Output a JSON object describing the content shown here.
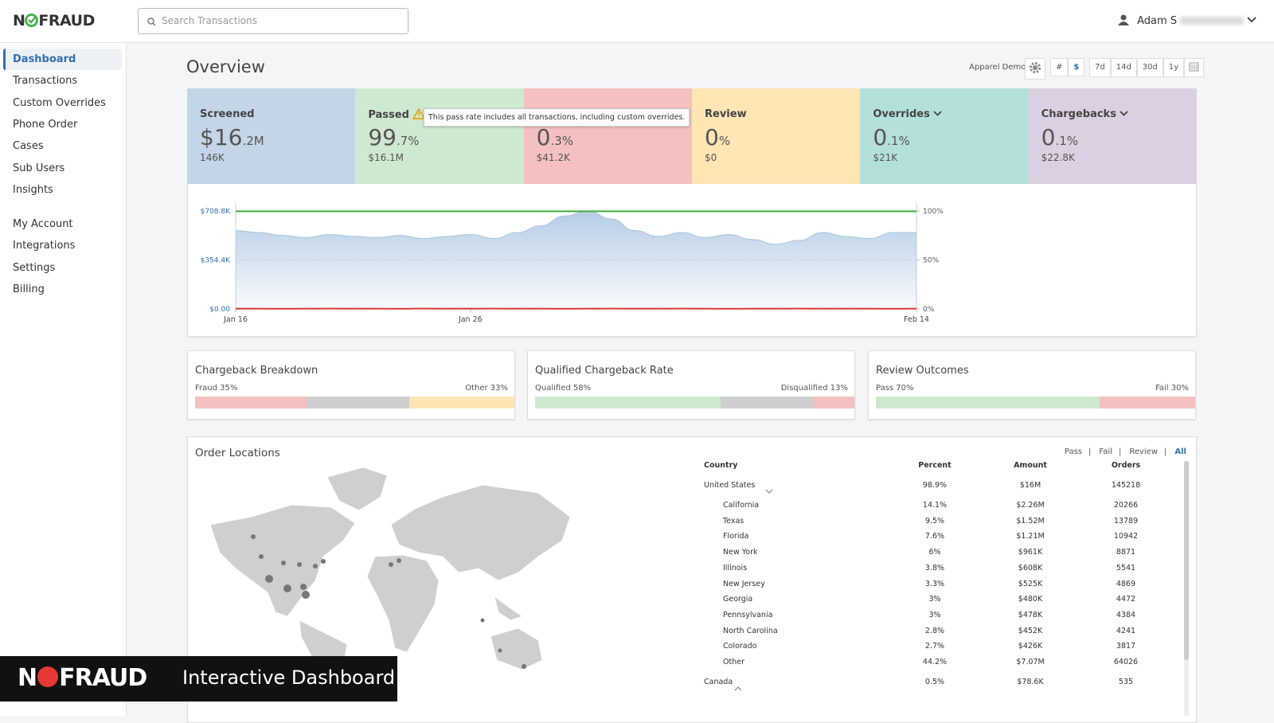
{
  "header": {
    "logo_left": "N",
    "logo_right": "FRAUD",
    "search_placeholder": "Search Transactions",
    "user": "Adam S"
  },
  "nav": {
    "groups": [
      [
        "Dashboard",
        "Transactions",
        "Custom Overrides",
        "Phone Order",
        "Cases",
        "Sub Users",
        "Insights"
      ],
      [
        "My Account",
        "Integrations",
        "Settings",
        "Billing"
      ]
    ]
  },
  "overview": {
    "title": "Overview",
    "account": "Apparel Demo",
    "modes": [
      "#",
      "$"
    ],
    "ranges": [
      "7d",
      "14d",
      "30d",
      "1y"
    ],
    "cards": [
      {
        "title": "Screened",
        "main": "$16",
        "decimal": ".2M",
        "sub": "146K",
        "color": "#c3d5e6"
      },
      {
        "title": "Passed",
        "main": "99",
        "decimal": ".7%",
        "sub": "$16.1M",
        "color": "#cfe9d0"
      },
      {
        "title": null,
        "main": "0",
        "decimal": ".3%",
        "sub": "$41.2K",
        "color": "#f5c0c0"
      },
      {
        "title": "Review",
        "main": "0",
        "decimal": "%",
        "sub": "$0",
        "color": "#fde5b4"
      },
      {
        "title": "Overrides",
        "main": "0",
        "decimal": ".1%",
        "sub": "$21K",
        "color": "#b4e0dc"
      },
      {
        "title": "Chargebacks",
        "main": "0",
        "decimal": ".1%",
        "sub": "$22.8K",
        "color": "#dccfe1"
      }
    ],
    "tooltip": "This pass rate includes all transactions, including custom overrides."
  },
  "trend": {
    "type": "area",
    "xlim": [
      0,
      29
    ],
    "xticks": [
      {
        "value": 0,
        "label": "Jan 16"
      },
      {
        "value": 10,
        "label": "Jan 26"
      },
      {
        "value": 29,
        "label": "Feb 14"
      }
    ],
    "ylim": [
      0,
      708800
    ],
    "yticks": [
      {
        "value": 708800,
        "label": "$708.8K"
      },
      {
        "value": 354400,
        "label": "$354.4K"
      },
      {
        "value": 0,
        "label": "$0.00"
      }
    ],
    "y2lim": [
      0,
      100
    ],
    "y2ticks": [
      {
        "value": 100,
        "label": "100%"
      },
      {
        "value": 50,
        "label": "50%"
      },
      {
        "value": 0,
        "label": "0%"
      }
    ],
    "series": [
      {
        "color": "#a9c4e0",
        "values": [
          567000,
          553000,
          532000,
          517000,
          539000,
          525000,
          517000,
          532000,
          510000,
          525000,
          539000,
          510000,
          553000,
          602000,
          673000,
          708800,
          652000,
          567000,
          525000,
          553000,
          517000,
          539000,
          503000,
          468000,
          496000,
          553000,
          525000,
          510000,
          553000,
          553000
        ]
      },
      {
        "color": "#3fae3f",
        "axis": "y2",
        "values": [
          99.7,
          99.7,
          99.7,
          99.7,
          99.7,
          99.7,
          99.7,
          99.7,
          99.7,
          99.7,
          99.7,
          99.7,
          99.7,
          99.7,
          99.7,
          99.7,
          99.7,
          99.7,
          99.7,
          99.7,
          99.7,
          99.7,
          99.7,
          99.7,
          99.7,
          99.7,
          99.7,
          99.7,
          99.7,
          99.7
        ]
      },
      {
        "color": "#d93a3a",
        "axis": "y2",
        "values": [
          0.3,
          0.3,
          0.2,
          0.3,
          0.4,
          0.3,
          0.3,
          0.2,
          0.4,
          0.3,
          0.3,
          0.4,
          0.3,
          0.3,
          0.2,
          0.3,
          0.4,
          0.3,
          0.3,
          0.4,
          0.3,
          0.2,
          0.3,
          0.3,
          0.4,
          0.3,
          0.3,
          0.3,
          0.2,
          0.3
        ]
      }
    ]
  },
  "breakdowns": [
    {
      "title": "Chargeback Breakdown",
      "segments": [
        {
          "value": 35,
          "label": "Fraud 35%",
          "color": "#f5c0c0"
        },
        {
          "value": 32,
          "label": null,
          "color": "#cfcfcf"
        },
        {
          "value": 33,
          "label": "Other 33%",
          "color": "#fde5b4"
        }
      ]
    },
    {
      "title": "Qualified Chargeback Rate",
      "segments": [
        {
          "value": 58,
          "label": "Qualified 58%",
          "color": "#cfe9d0"
        },
        {
          "value": 29,
          "label": null,
          "color": "#cfcfcf"
        },
        {
          "value": 13,
          "label": "Disqualified 13%",
          "color": "#f5c0c0"
        }
      ]
    },
    {
      "title": "Review Outcomes",
      "segments": [
        {
          "value": 70,
          "label": "Pass 70%",
          "color": "#cfe9d0"
        },
        {
          "value": 30,
          "label": "Fail 30%",
          "color": "#f5c0c0"
        }
      ]
    }
  ],
  "locations": {
    "title": "Order Locations",
    "filters": [
      "Pass",
      "Fail",
      "Review",
      "All"
    ],
    "headers": [
      "Country",
      "Percent",
      "Amount",
      "Orders"
    ],
    "countries": [
      {
        "name": "United States",
        "percent": "98.9%",
        "amount": "$16M",
        "orders": "145218",
        "states": [
          [
            "California",
            "14.1%",
            "$2.26M",
            "20266"
          ],
          [
            "Texas",
            "9.5%",
            "$1.52M",
            "13789"
          ],
          [
            "Florida",
            "7.6%",
            "$1.21M",
            "10942"
          ],
          [
            "New York",
            "6%",
            "$961K",
            "8871"
          ],
          [
            "Illinois",
            "3.8%",
            "$608K",
            "5541"
          ],
          [
            "New Jersey",
            "3.3%",
            "$525K",
            "4869"
          ],
          [
            "Georgia",
            "3%",
            "$480K",
            "4472"
          ],
          [
            "Pennsylvania",
            "3%",
            "$478K",
            "4384"
          ],
          [
            "North Carolina",
            "2.8%",
            "$452K",
            "4241"
          ],
          [
            "Colorado",
            "2.7%",
            "$426K",
            "3817"
          ],
          [
            "Other",
            "44.2%",
            "$7.07M",
            "64026"
          ]
        ]
      },
      {
        "name": "Canada",
        "percent": "0.5%",
        "amount": "$78.6K",
        "orders": "535",
        "states": []
      }
    ]
  },
  "banner": {
    "logo_left": "N",
    "logo_right": "FRAUD",
    "caption": "Interactive Dashboard"
  }
}
